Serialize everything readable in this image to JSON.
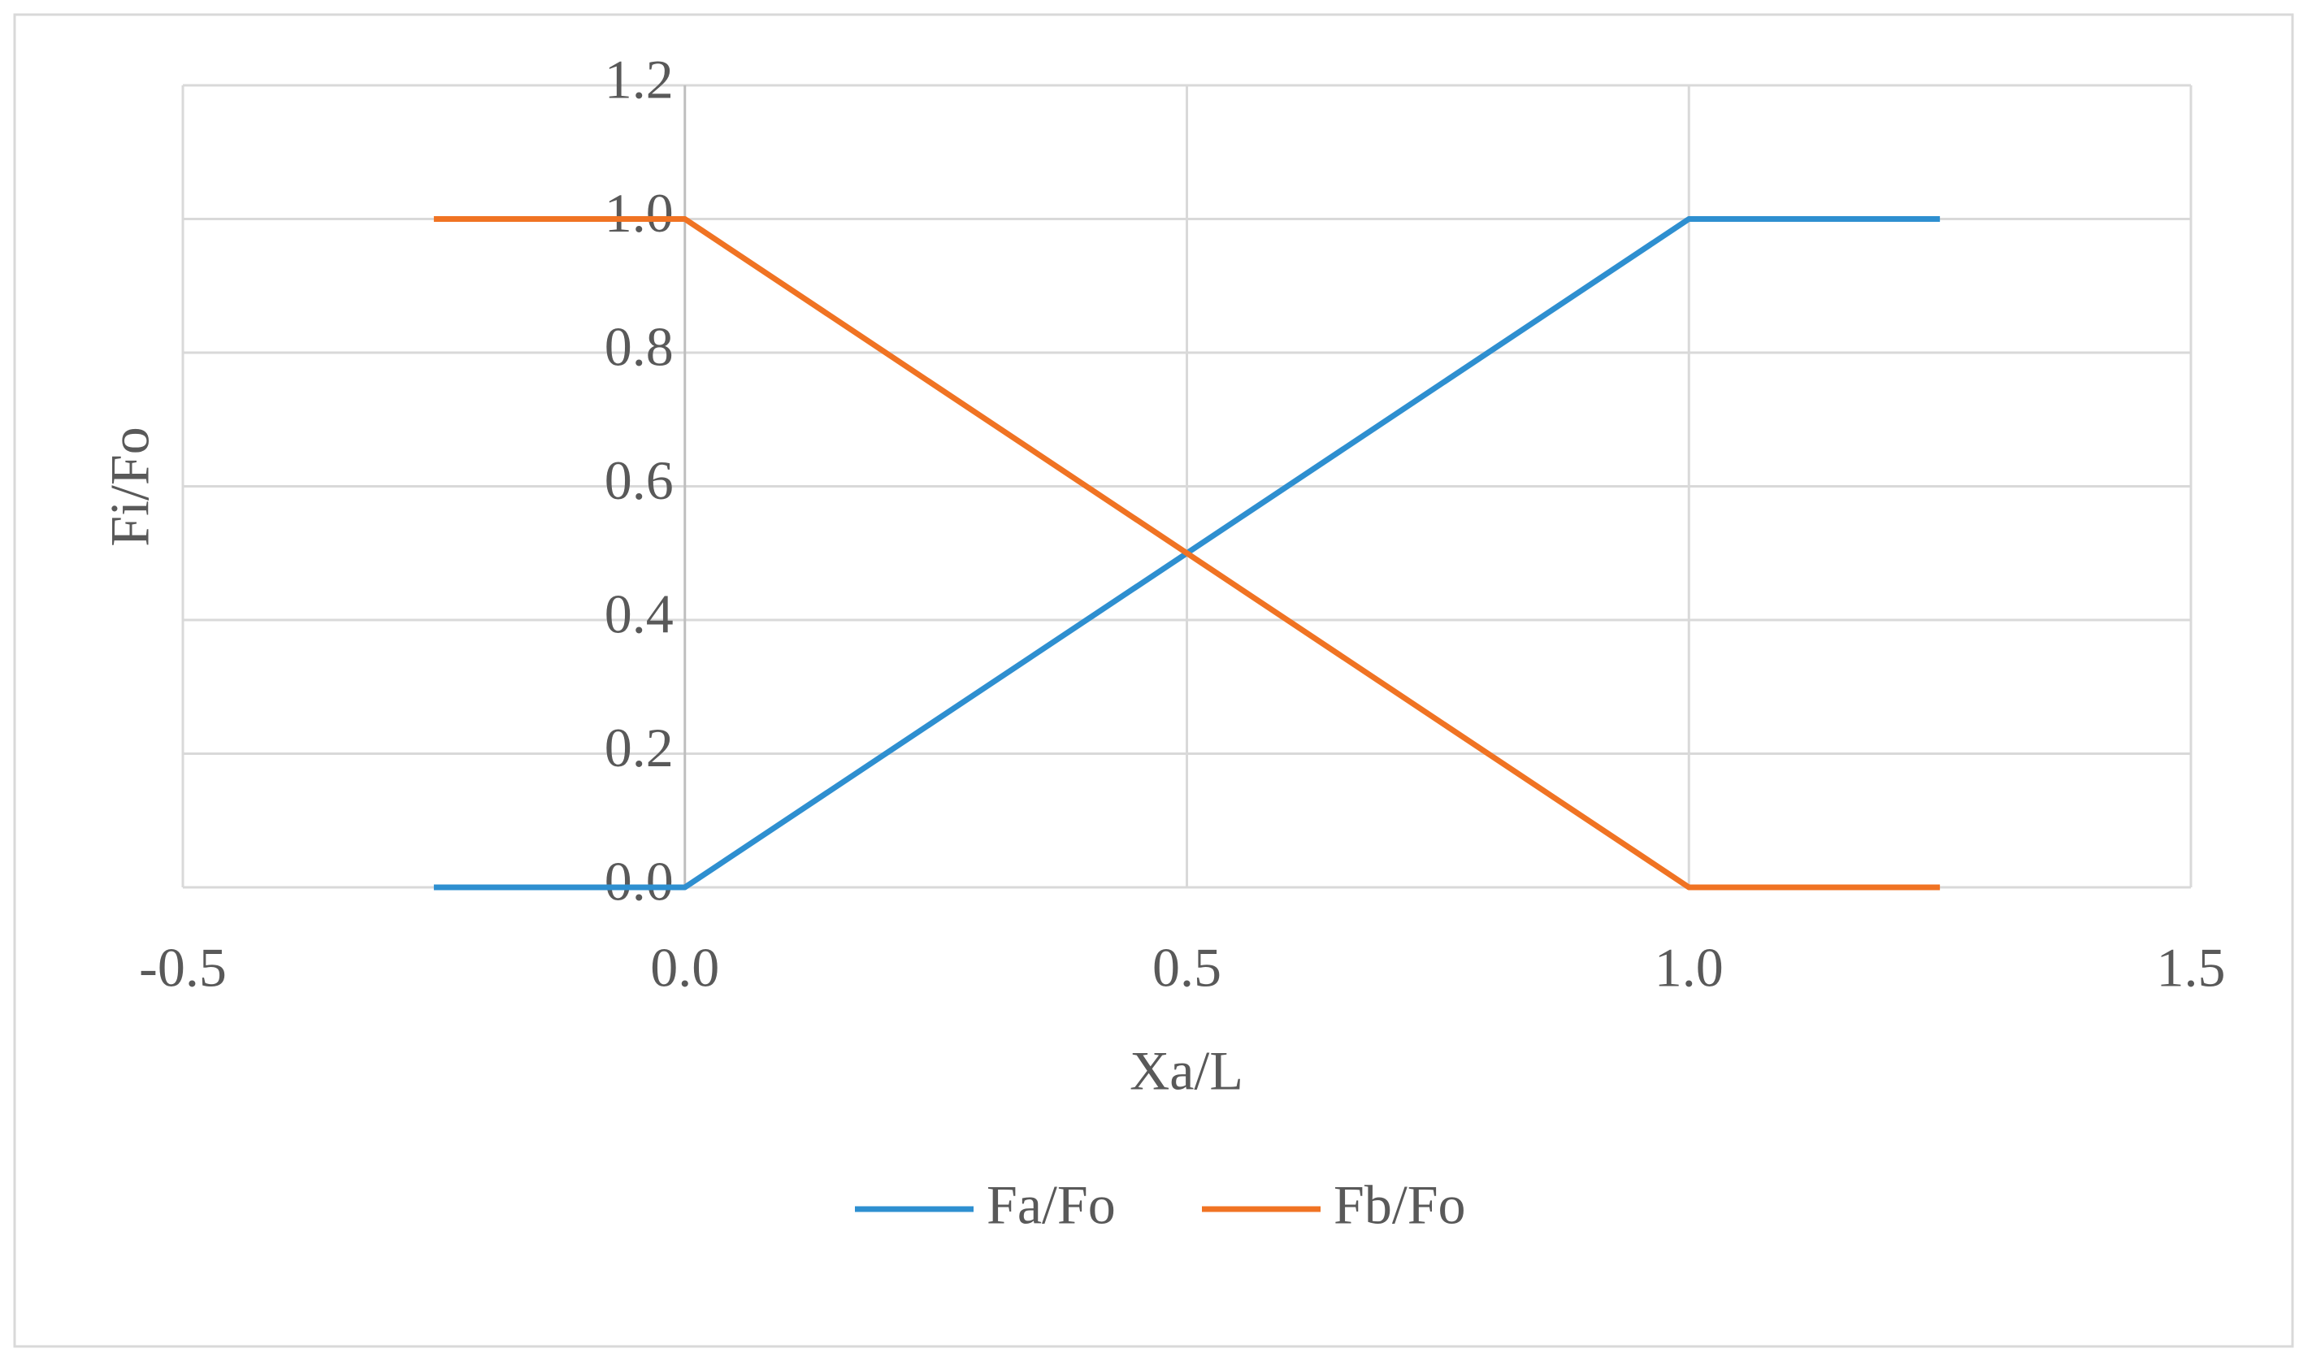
{
  "chart_data": {
    "type": "line",
    "x_label": "Xa/L",
    "y_label": "Fi/Fo",
    "x": [
      -0.25,
      0,
      1,
      1.25
    ],
    "series": [
      {
        "name": "Fa/Fo",
        "color": "#2e8fd0",
        "values": [
          0,
          0,
          1,
          1
        ]
      },
      {
        "name": "Fb/Fo",
        "color": "#f07323",
        "values": [
          1,
          1,
          0,
          0
        ]
      }
    ],
    "xlim": [
      -0.5,
      1.5
    ],
    "xticks": [
      -0.5,
      {
        "value": 0,
        "label": "0.0"
      },
      0.5,
      {
        "value": 1,
        "label": "1.0"
      },
      1.5
    ],
    "ylim": [
      0,
      1.2
    ],
    "yticks": [
      {
        "value": 0,
        "label": "0.0"
      },
      0.2,
      0.4,
      0.6,
      0.8,
      {
        "value": 1,
        "label": "1.0"
      },
      1.2
    ],
    "grid": true,
    "legend": "bottom"
  }
}
